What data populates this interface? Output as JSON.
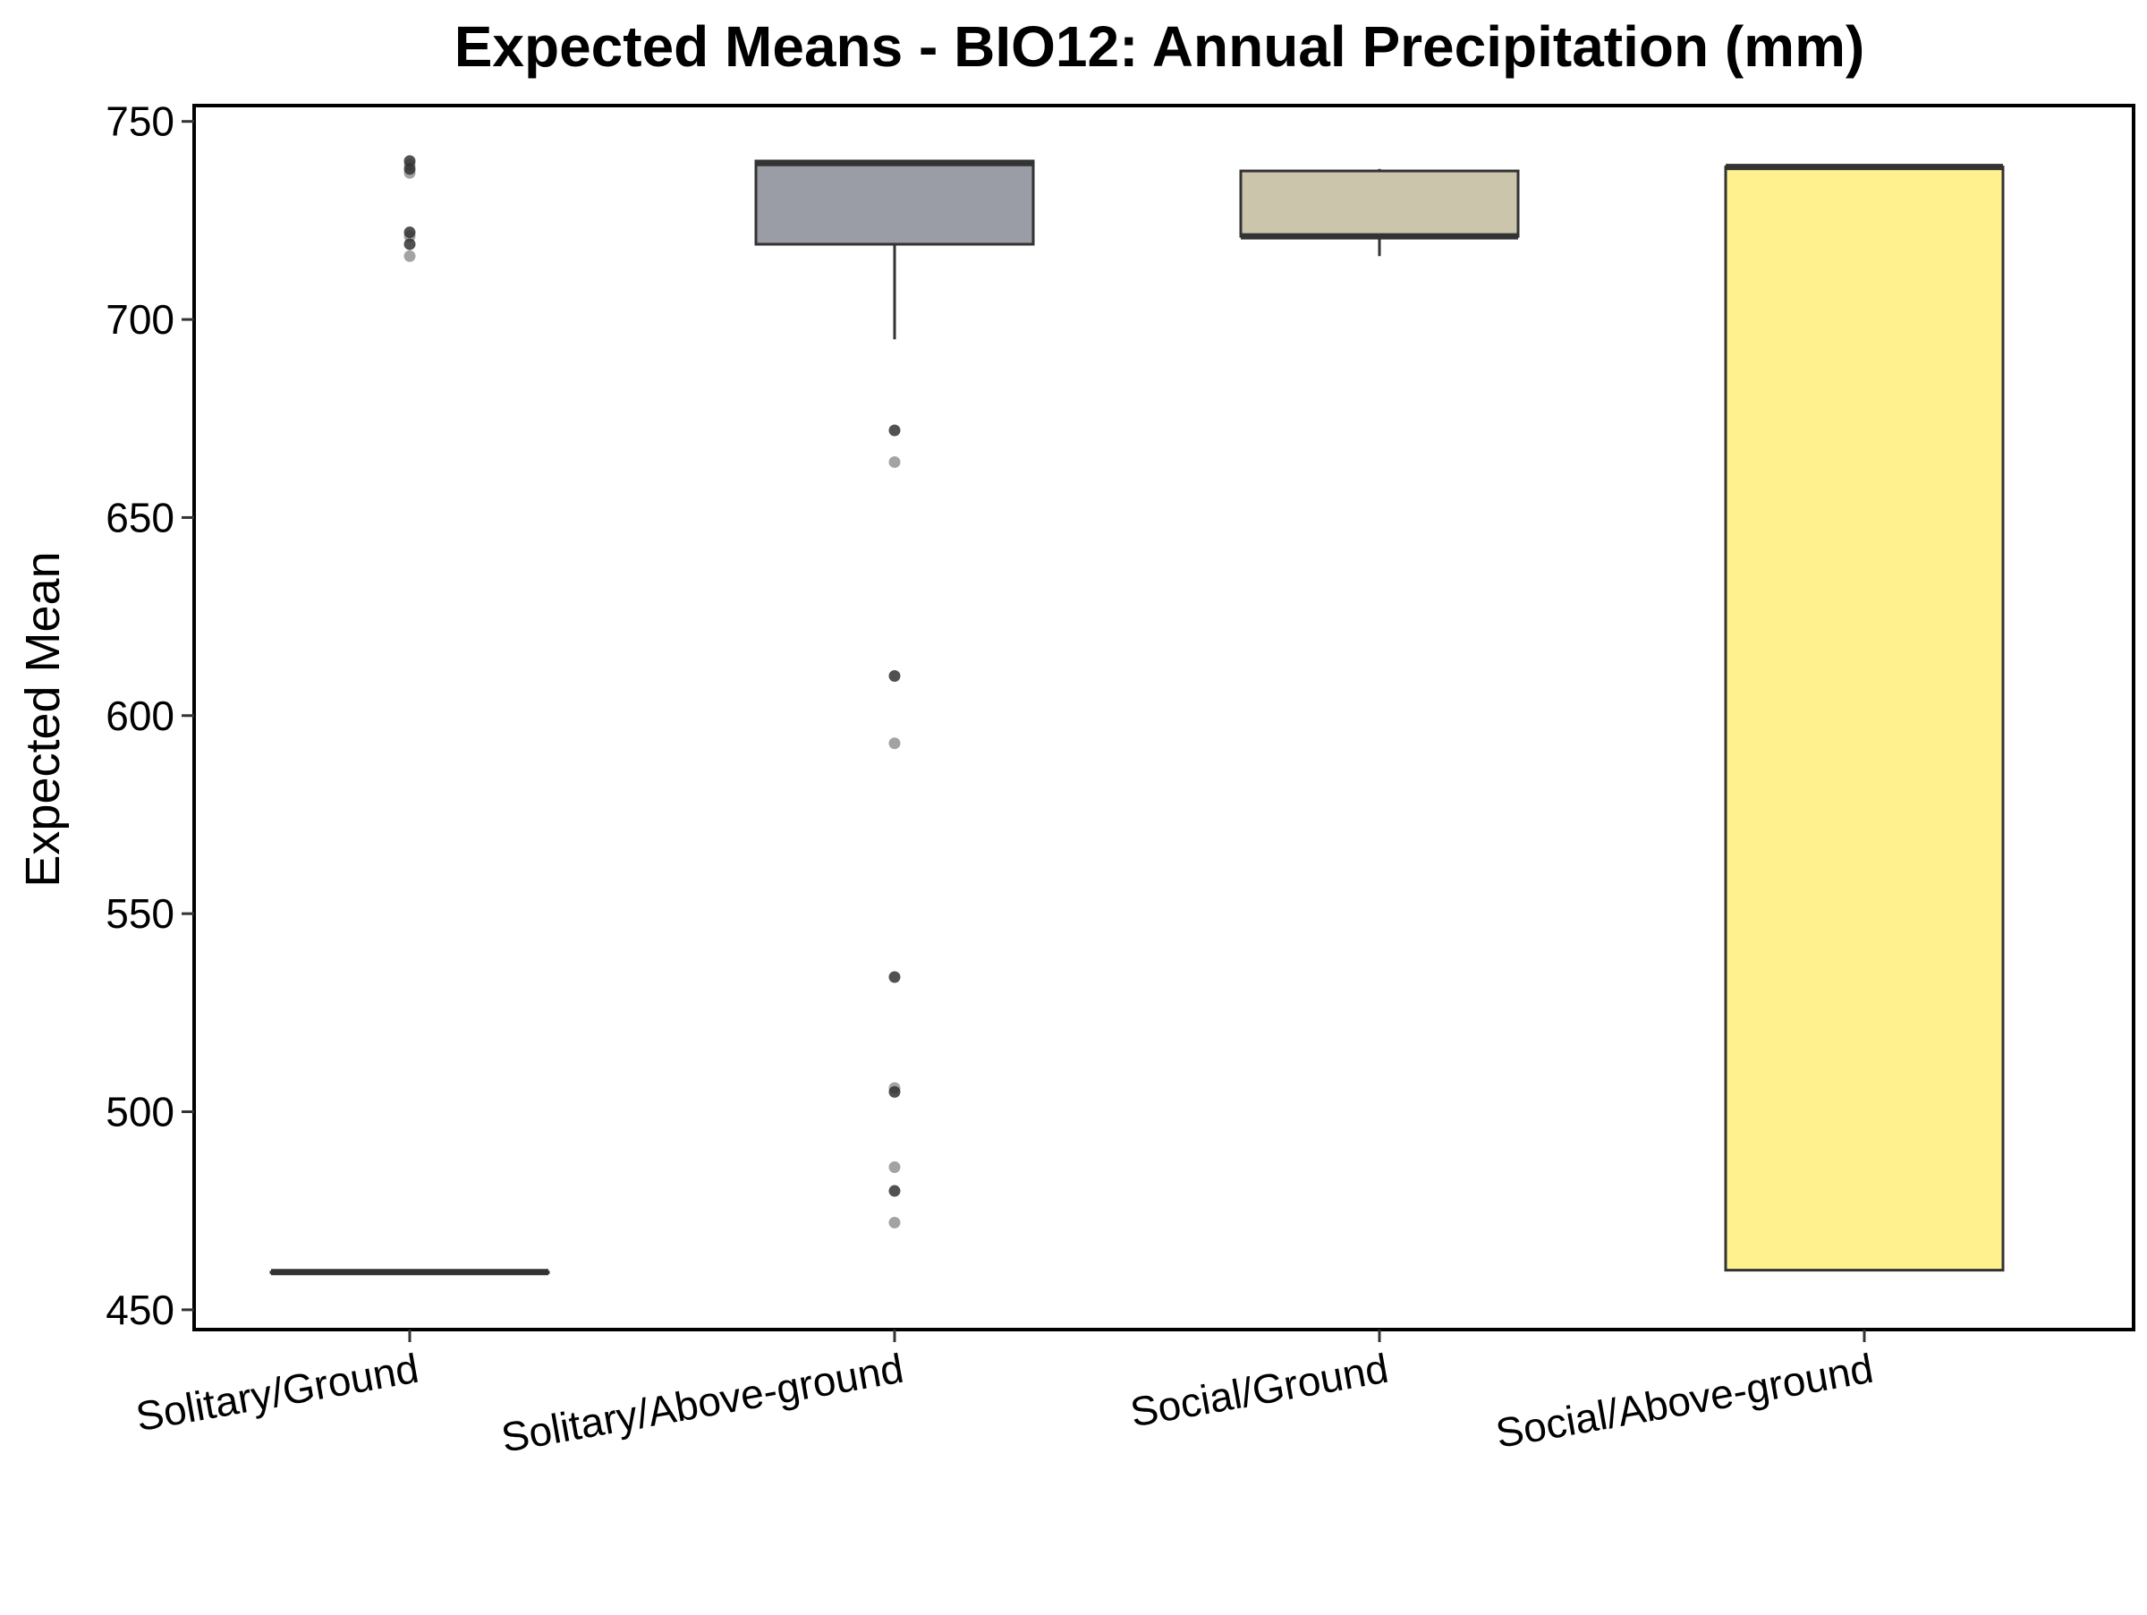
{
  "chart_data": {
    "type": "box",
    "title": "Expected Means - BIO12: Annual Precipitation (mm)",
    "xlabel": "",
    "ylabel": "Expected Mean",
    "ylim": [
      445,
      754
    ],
    "yticks": [
      450,
      500,
      550,
      600,
      650,
      700,
      750
    ],
    "yticks_text": [
      "450",
      "500",
      "550",
      "600",
      "650",
      "700",
      "750"
    ],
    "categories": [
      "Solitary/Ground",
      "Solitary/Above-ground",
      "Social/Ground",
      "Social/Above-ground"
    ],
    "grid": false,
    "legend": "none",
    "boxes": [
      {
        "category": "Solitary/Ground",
        "color": "#3B3B3B",
        "whisker_low": 459.5,
        "q1": 459.5,
        "median": 459.5,
        "q3": 459.5,
        "whisker_high": 459.5,
        "outliers": [
          740,
          739,
          738,
          737,
          722,
          721,
          719,
          716
        ]
      },
      {
        "category": "Solitary/Above-ground",
        "color": "#9A9CA6",
        "whisker_low": 695,
        "q1": 719,
        "median": 739.5,
        "q3": 740,
        "whisker_high": 740,
        "outliers": [
          672,
          664,
          610,
          593,
          534,
          506,
          505,
          486,
          480,
          472
        ]
      },
      {
        "category": "Social/Ground",
        "color": "#CBC5AC",
        "whisker_low": 716,
        "q1": 721,
        "median": 721,
        "q3": 737.5,
        "whisker_high": 738,
        "outliers": []
      },
      {
        "category": "Social/Above-ground",
        "color": "#FFF18E",
        "whisker_low": 460,
        "q1": 460,
        "median": 738.5,
        "q3": 738.5,
        "whisker_high": 738.5,
        "outliers": []
      }
    ]
  }
}
